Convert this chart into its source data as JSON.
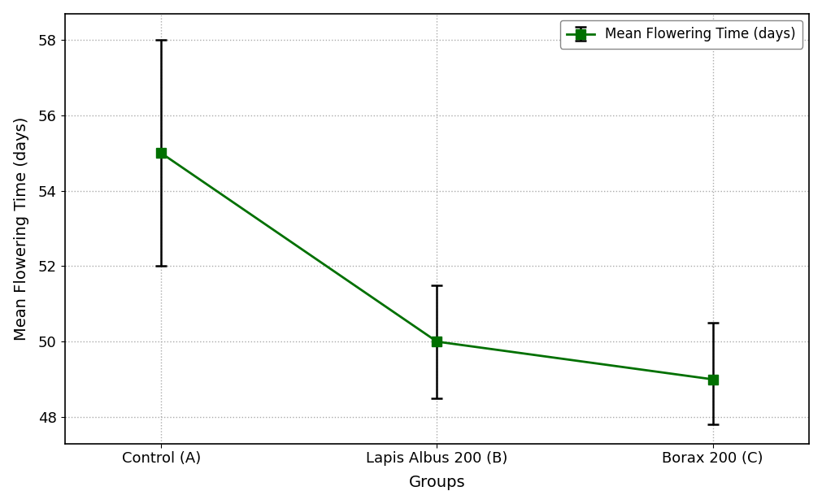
{
  "groups": [
    "Control (A)",
    "Lapis Albus 200 (B)",
    "Borax 200 (C)"
  ],
  "means": [
    55.0,
    50.0,
    49.0
  ],
  "yerr_lower": [
    3.0,
    1.5,
    1.2
  ],
  "yerr_upper": [
    3.0,
    1.5,
    1.5
  ],
  "line_color": "#007000",
  "marker": "s",
  "marker_size": 8,
  "line_width": 2.0,
  "xlabel": "Groups",
  "ylabel": "Mean Flowering Time (days)",
  "ylim": [
    47.3,
    58.7
  ],
  "yticks": [
    48,
    50,
    52,
    54,
    56,
    58
  ],
  "legend_label": "Mean Flowering Time (days)",
  "grid_linestyle": ":",
  "grid_color": "#aaaaaa",
  "background_color": "#ffffff",
  "capsize": 5,
  "cap_thickness": 1.8,
  "ecolor": "black",
  "elinewidth": 1.8
}
